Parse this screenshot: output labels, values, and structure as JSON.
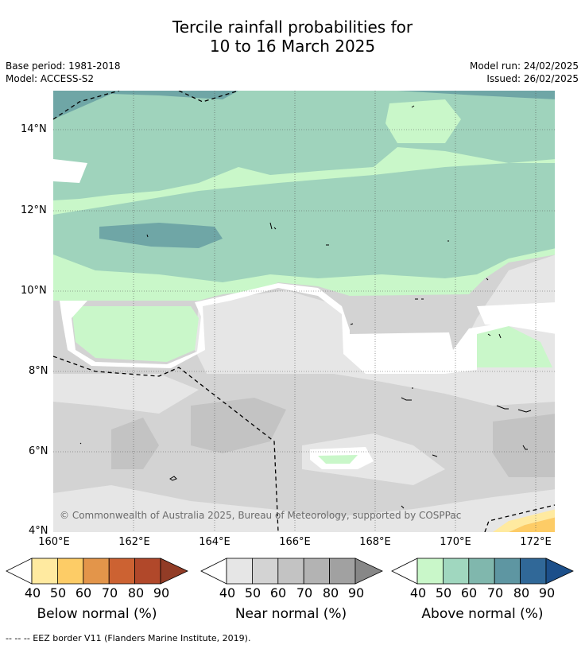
{
  "header": {
    "title_line1": "Tercile rainfall probabilities for",
    "title_line2": "10 to 16 March 2025",
    "base_period": "Base period: 1981-2018",
    "model": "Model: ACCESS-S2",
    "model_run": "Model run: 24/02/2025",
    "issued": "Issued: 26/02/2025"
  },
  "map": {
    "lat_labels": [
      "14°N",
      "12°N",
      "10°N",
      "8°N",
      "6°N",
      "4°N"
    ],
    "lon_labels": [
      "160°E",
      "162°E",
      "164°E",
      "166°E",
      "168°E",
      "170°E",
      "172°E"
    ],
    "copyright": "© Commonwealth of Australia 2025, Bureau of Meteorology, supported by COSPPac",
    "region_colors": {
      "above_40": "#c9f7c9",
      "above_50": "#9fd3bc",
      "above_60": "#6fa6a6",
      "near_40": "#e6e6e6",
      "near_50": "#d3d3d3",
      "below_40": "#ffeaa0",
      "below_50": "#fdcc66"
    }
  },
  "legends": [
    {
      "name": "below",
      "label": "Below normal (%)",
      "ticks": [
        "40",
        "50",
        "60",
        "70",
        "80",
        "90"
      ],
      "colors": [
        "#ffeaa0",
        "#fdcc66",
        "#e3954a",
        "#cc6232",
        "#b1482a",
        "#923c26"
      ]
    },
    {
      "name": "near",
      "label": "Near normal (%)",
      "ticks": [
        "40",
        "50",
        "60",
        "70",
        "80",
        "90"
      ],
      "colors": [
        "#e6e6e6",
        "#d3d3d3",
        "#c3c3c3",
        "#b3b3b3",
        "#a1a1a1",
        "#878787"
      ]
    },
    {
      "name": "above",
      "label": "Above normal (%)",
      "ticks": [
        "40",
        "50",
        "60",
        "70",
        "80",
        "90"
      ],
      "colors": [
        "#c9f7c9",
        "#a0d7bf",
        "#80b7ad",
        "#5e96a2",
        "#306898",
        "#1c4f8a"
      ]
    }
  ],
  "footnote": "--  --  -- EEZ border V11 (Flanders Marine Institute, 2019)."
}
